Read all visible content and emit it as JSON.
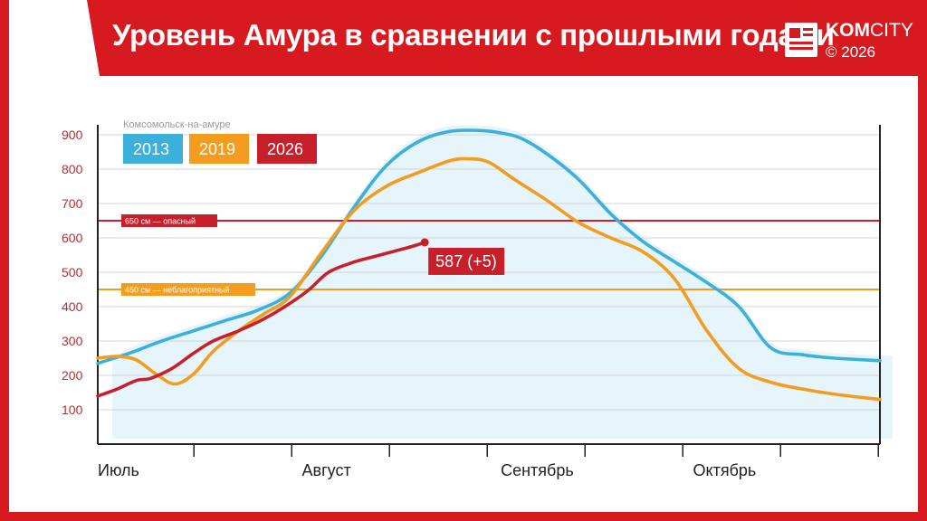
{
  "header": {
    "title": "Уровень Амура в сравнении с прошлыми годами",
    "brand_left": "KOM",
    "brand_right": "CITY",
    "copyright": "© 2026"
  },
  "colors": {
    "banner": "#d71920",
    "s2013": "#3bb0db",
    "s2019": "#f39c1d",
    "s2026": "#c8202a",
    "fill": "#e6f4fb"
  },
  "chart_data": {
    "type": "line",
    "title": "",
    "location": "Комсомольск-на-амуре",
    "xlabel": "",
    "ylabel": "",
    "xlim": [
      0,
      122
    ],
    "ylim": [
      0,
      950
    ],
    "yticks": [
      100,
      200,
      300,
      400,
      500,
      600,
      700,
      800,
      900
    ],
    "months": [
      {
        "label": "Июль",
        "day": 0
      },
      {
        "label": "Август",
        "day": 31
      },
      {
        "label": "Сентябрь",
        "day": 62
      },
      {
        "label": "Октябрь",
        "day": 92
      }
    ],
    "grid": true,
    "legend": "top-left",
    "thresholds": [
      {
        "value": 650,
        "label": "650 см — опасный",
        "color": "#c8202a"
      },
      {
        "value": 450,
        "label": "450 см — неблагоприятный",
        "color": "#f39c1d"
      }
    ],
    "series": [
      {
        "name": "2013",
        "color": "#3bb0db",
        "x": [
          0,
          5,
          10,
          15,
          20,
          25,
          30,
          35,
          40,
          45,
          50,
          55,
          60,
          63,
          66,
          70,
          75,
          80,
          85,
          90,
          95,
          100,
          105,
          110,
          115,
          122
        ],
        "y": [
          235,
          265,
          300,
          330,
          360,
          390,
          440,
          550,
          690,
          810,
          880,
          910,
          912,
          905,
          890,
          845,
          770,
          670,
          590,
          530,
          470,
          400,
          280,
          260,
          250,
          243
        ]
      },
      {
        "name": "2019",
        "color": "#f39c1d",
        "x": [
          0,
          3,
          6,
          9,
          12,
          15,
          18,
          22,
          26,
          30,
          35,
          40,
          45,
          50,
          55,
          58,
          61,
          65,
          70,
          75,
          80,
          85,
          90,
          95,
          100,
          105,
          110,
          115,
          122
        ],
        "y": [
          250,
          255,
          245,
          205,
          175,
          205,
          270,
          330,
          380,
          430,
          560,
          680,
          750,
          790,
          825,
          830,
          820,
          770,
          710,
          645,
          600,
          560,
          480,
          330,
          220,
          180,
          160,
          145,
          130
        ]
      },
      {
        "name": "2026",
        "color": "#c8202a",
        "x": [
          0,
          3,
          6,
          8,
          10,
          12,
          15,
          18,
          22,
          26,
          30,
          33,
          36,
          40,
          43,
          46,
          49,
          51
        ],
        "y": [
          140,
          160,
          185,
          190,
          205,
          225,
          265,
          300,
          330,
          365,
          410,
          450,
          500,
          530,
          545,
          560,
          575,
          587
        ]
      }
    ],
    "annotations": [
      {
        "text": "587 (+5)",
        "x": 51,
        "y": 587,
        "series": "2026"
      }
    ]
  }
}
